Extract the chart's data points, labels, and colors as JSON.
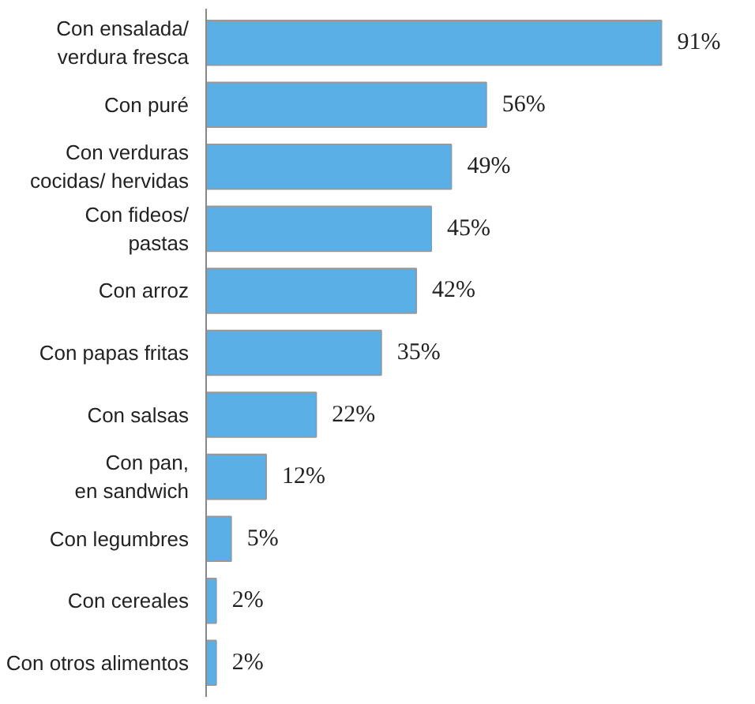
{
  "chart_data": {
    "type": "bar",
    "orientation": "horizontal",
    "categories": [
      "Con ensalada/\nverdura fresca",
      "Con puré",
      "Con verduras\ncocidas/ hervidas",
      "Con fideos/\npastas",
      "Con arroz",
      "Con papas fritas",
      "Con salsas",
      "Con pan,\nen sandwich",
      "Con legumbres",
      "Con cereales",
      "Con otros alimentos"
    ],
    "values": [
      91,
      56,
      49,
      45,
      42,
      35,
      22,
      12,
      5,
      2,
      2
    ],
    "value_labels": [
      "91%",
      "56%",
      "49%",
      "45%",
      "42%",
      "35%",
      "22%",
      "12%",
      "5%",
      "2%",
      "2%"
    ],
    "color": "#5aafe6",
    "grid": false
  }
}
